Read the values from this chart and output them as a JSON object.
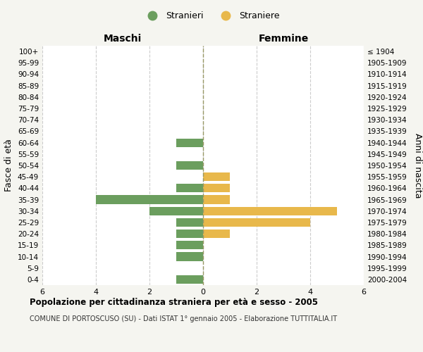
{
  "age_groups": [
    "0-4",
    "5-9",
    "10-14",
    "15-19",
    "20-24",
    "25-29",
    "30-34",
    "35-39",
    "40-44",
    "45-49",
    "50-54",
    "55-59",
    "60-64",
    "65-69",
    "70-74",
    "75-79",
    "80-84",
    "85-89",
    "90-94",
    "95-99",
    "100+"
  ],
  "birth_years": [
    "2000-2004",
    "1995-1999",
    "1990-1994",
    "1985-1989",
    "1980-1984",
    "1975-1979",
    "1970-1974",
    "1965-1969",
    "1960-1964",
    "1955-1959",
    "1950-1954",
    "1945-1949",
    "1940-1944",
    "1935-1939",
    "1930-1934",
    "1925-1929",
    "1920-1924",
    "1915-1919",
    "1910-1914",
    "1905-1909",
    "≤ 1904"
  ],
  "males": [
    1,
    0,
    1,
    1,
    1,
    1,
    2,
    4,
    1,
    0,
    1,
    0,
    1,
    0,
    0,
    0,
    0,
    0,
    0,
    0,
    0
  ],
  "females": [
    0,
    0,
    0,
    0,
    1,
    4,
    5,
    1,
    1,
    1,
    0,
    0,
    0,
    0,
    0,
    0,
    0,
    0,
    0,
    0,
    0
  ],
  "male_color": "#6b9e5e",
  "female_color": "#e8b84b",
  "male_label": "Stranieri",
  "female_label": "Straniere",
  "title": "Popolazione per cittadinanza straniera per età e sesso - 2005",
  "subtitle": "COMUNE DI PORTOSCUSO (SU) - Dati ISTAT 1° gennaio 2005 - Elaborazione TUTTITALIA.IT",
  "xlabel_left": "Maschi",
  "xlabel_right": "Femmine",
  "ylabel_left": "Fasce di età",
  "ylabel_right": "Anni di nascita",
  "xlim": 6,
  "bg_color": "#f5f5f0",
  "plot_bg_color": "#ffffff",
  "grid_color": "#cccccc"
}
